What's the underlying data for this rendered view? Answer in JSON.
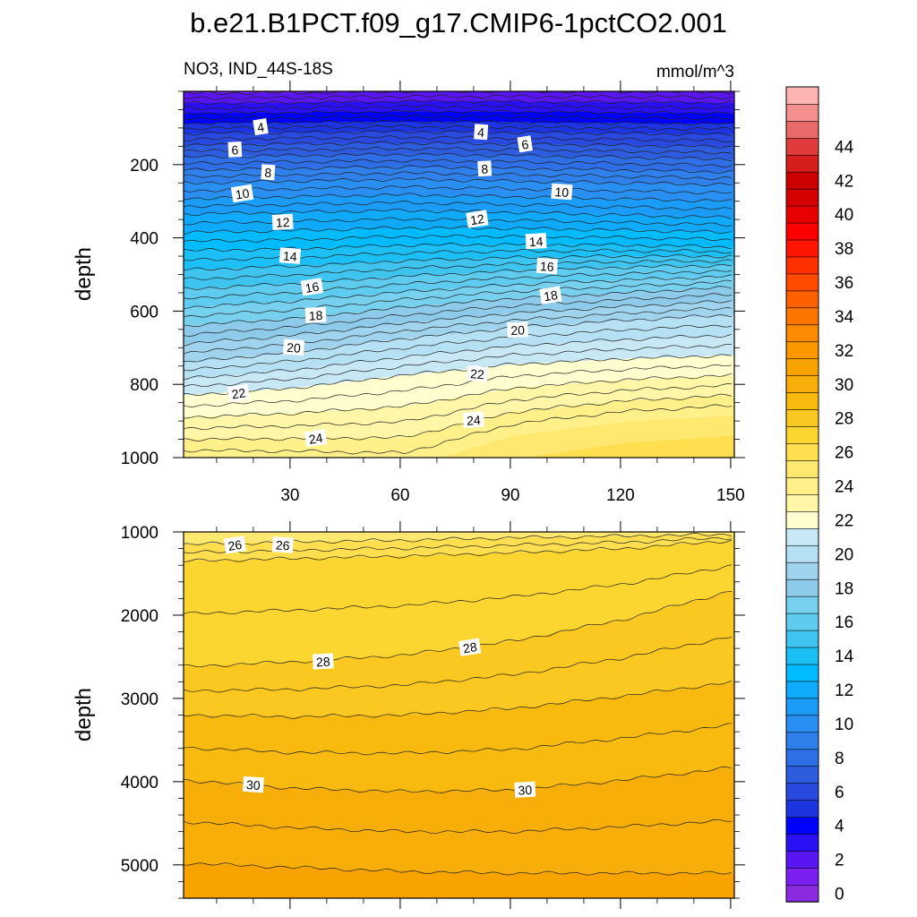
{
  "chart_data": {
    "type": "contour",
    "title": "b.e21.B1PCT.f09_g17.CMIP6-1pctCO2.001",
    "variable_label": "NO3, IND_44S-18S",
    "units": "mmol/m^3",
    "x": {
      "range": [
        1,
        151
      ],
      "ticks": [
        30,
        60,
        90,
        120,
        150
      ],
      "tick_labels": [
        "30",
        "60",
        "90",
        "120",
        "150"
      ]
    },
    "panels": [
      {
        "name": "upper",
        "ylabel": "depth",
        "ylim": [
          0,
          1000
        ],
        "yticks": [
          200,
          400,
          600,
          800,
          1000
        ],
        "ytick_labels": [
          "200",
          "400",
          "600",
          "800",
          "1000"
        ],
        "contour_depths_at_x": {
          "x": [
            1,
            31,
            61,
            91,
            121,
            151
          ],
          "levels": [
            {
              "value": 4,
              "depths": [
                60,
                58,
                55,
                56,
                58,
                60
              ]
            },
            {
              "value": 6,
              "depths": [
                115,
                112,
                110,
                112,
                115,
                118
              ]
            },
            {
              "value": 8,
              "depths": [
                180,
                175,
                172,
                175,
                180,
                185
              ]
            },
            {
              "value": 10,
              "depths": [
                250,
                245,
                240,
                245,
                250,
                255
              ]
            },
            {
              "value": 12,
              "depths": [
                335,
                330,
                325,
                330,
                338,
                345
              ]
            },
            {
              "value": 14,
              "depths": [
                435,
                430,
                420,
                418,
                420,
                425
              ]
            },
            {
              "value": 16,
              "depths": [
                540,
                525,
                505,
                490,
                480,
                475
              ]
            },
            {
              "value": 18,
              "depths": [
                640,
                620,
                590,
                565,
                550,
                535
              ]
            },
            {
              "value": 20,
              "depths": [
                740,
                712,
                675,
                645,
                625,
                610
              ]
            },
            {
              "value": 22,
              "depths": [
                830,
                810,
                775,
                745,
                730,
                720
              ]
            },
            {
              "value": 24,
              "depths": [
                950,
                948,
                945,
                875,
                845,
                830
              ]
            }
          ]
        },
        "contour_labels": [
          {
            "x": 22,
            "y": 98,
            "text": "4"
          },
          {
            "x": 82,
            "y": 112,
            "text": "4"
          },
          {
            "x": 15,
            "y": 160,
            "text": "6"
          },
          {
            "x": 94,
            "y": 145,
            "text": "6"
          },
          {
            "x": 24,
            "y": 222,
            "text": "8"
          },
          {
            "x": 83,
            "y": 212,
            "text": "8"
          },
          {
            "x": 17,
            "y": 280,
            "text": "10"
          },
          {
            "x": 104,
            "y": 275,
            "text": "10"
          },
          {
            "x": 28,
            "y": 358,
            "text": "12"
          },
          {
            "x": 81,
            "y": 350,
            "text": "12"
          },
          {
            "x": 30,
            "y": 450,
            "text": "14"
          },
          {
            "x": 97,
            "y": 410,
            "text": "14"
          },
          {
            "x": 36,
            "y": 535,
            "text": "16"
          },
          {
            "x": 100,
            "y": 478,
            "text": "16"
          },
          {
            "x": 37,
            "y": 612,
            "text": "18"
          },
          {
            "x": 101,
            "y": 558,
            "text": "18"
          },
          {
            "x": 31,
            "y": 700,
            "text": "20"
          },
          {
            "x": 92,
            "y": 652,
            "text": "20"
          },
          {
            "x": 16,
            "y": 825,
            "text": "22"
          },
          {
            "x": 81,
            "y": 772,
            "text": "22"
          },
          {
            "x": 80,
            "y": 898,
            "text": "24"
          },
          {
            "x": 37,
            "y": 948,
            "text": "24"
          }
        ]
      },
      {
        "name": "lower",
        "ylabel": "depth",
        "ylim": [
          1000,
          5400
        ],
        "yticks": [
          1000,
          2000,
          3000,
          4000,
          5000
        ],
        "ytick_labels": [
          "1000",
          "2000",
          "3000",
          "4000",
          "5000"
        ],
        "contour_depths_at_x": {
          "x": [
            1,
            31,
            61,
            91,
            121,
            151
          ],
          "levels": [
            {
              "value": 26,
              "depths": [
                1150,
                1120,
                1100,
                1070,
                1050,
                1030
              ]
            },
            {
              "value": 27,
              "depths": [
                1350,
                1320,
                1290,
                1250,
                1200,
                1100
              ]
            },
            {
              "value": 28,
              "depths": [
                2620,
                2560,
                2480,
                2310,
                2050,
                1700
              ]
            },
            {
              "value": 29,
              "depths": [
                3200,
                3220,
                3200,
                3120,
                2970,
                2800
              ]
            },
            {
              "value": 30,
              "depths": [
                3980,
                4080,
                4120,
                4100,
                3980,
                3830
              ]
            },
            {
              "value": 31,
              "depths": [
                4980,
                5030,
                5080,
                5100,
                5100,
                5100
              ]
            }
          ]
        },
        "contour_labels": [
          {
            "x": 15,
            "y": 1160,
            "text": "26"
          },
          {
            "x": 28,
            "y": 1160,
            "text": "26"
          },
          {
            "x": 39,
            "y": 2560,
            "text": "28"
          },
          {
            "x": 79,
            "y": 2390,
            "text": "28"
          },
          {
            "x": 20,
            "y": 4040,
            "text": "30"
          },
          {
            "x": 94,
            "y": 4100,
            "text": "30"
          }
        ]
      }
    ],
    "colorbar": {
      "levels": [
        0,
        2,
        4,
        6,
        8,
        10,
        12,
        14,
        16,
        18,
        20,
        22,
        24,
        26,
        28,
        30,
        32,
        34,
        36,
        38,
        40,
        42,
        44
      ],
      "labels": [
        "0",
        "2",
        "4",
        "6",
        "8",
        "10",
        "12",
        "14",
        "16",
        "18",
        "20",
        "22",
        "24",
        "26",
        "28",
        "30",
        "32",
        "34",
        "36",
        "38",
        "40",
        "42",
        "44"
      ],
      "colors": [
        "#8a2be2",
        "#7a1ff0",
        "#5a16f2",
        "#2a10f5",
        "#0000ff",
        "#1d35e0",
        "#2a49de",
        "#2d5cde",
        "#2e6ee6",
        "#2f80ea",
        "#2a8ff2",
        "#1a9cf8",
        "#10aafc",
        "#00bbff",
        "#1cc0f6",
        "#3fc4f0",
        "#5ecbef",
        "#76d0ee",
        "#8ecbea",
        "#a0d4ee",
        "#b6e0f3",
        "#c8e8f6",
        "#fffece",
        "#fff6a8",
        "#fff08a",
        "#ffe870",
        "#ffdf50",
        "#fcd630",
        "#fac820",
        "#f9ba10",
        "#f8ae08",
        "#f9a300",
        "#fb9800",
        "#fd8a00",
        "#fe7600",
        "#ff6000",
        "#ff4a00",
        "#ff3000",
        "#ff1500",
        "#ff0000",
        "#e80000",
        "#d40000",
        "#cc0000",
        "#d61e1e",
        "#e03c3c",
        "#ea6a6a",
        "#f49090",
        "#ffb4b4"
      ]
    }
  }
}
